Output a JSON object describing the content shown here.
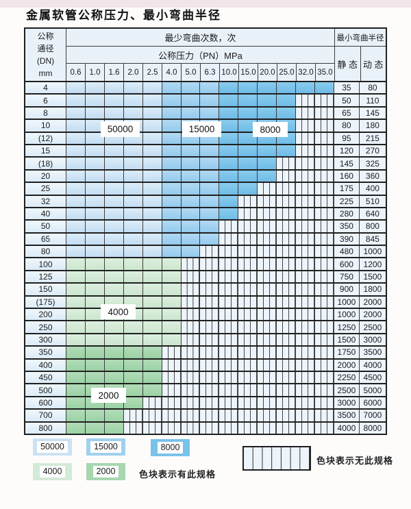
{
  "title": "金属软管公称压力、最小弯曲半径",
  "table": {
    "dn_header_lines": [
      "公称",
      "通径",
      "(DN)",
      "mm"
    ],
    "bend_cycles_header": "最少弯曲次数，次",
    "pressure_header": "公称压力（PN）MPa",
    "radius_header": "最小弯曲半径",
    "static_label": "静 态",
    "dynamic_label": "动 态",
    "pressures": [
      "0.6",
      "1.0",
      "1.6",
      "2.0",
      "2.5",
      "4.0",
      "5.0",
      "6.3",
      "10.0",
      "15.0",
      "20.0",
      "25.0",
      "32.0",
      "35.0"
    ],
    "rows": [
      {
        "dn": "4",
        "avail": 14,
        "shade": "blue",
        "static": "35",
        "dynamic": "80"
      },
      {
        "dn": "6",
        "avail": 12,
        "shade": "blue",
        "static": "50",
        "dynamic": "110"
      },
      {
        "dn": "8",
        "avail": 12,
        "shade": "blue",
        "static": "65",
        "dynamic": "145"
      },
      {
        "dn": "10",
        "avail": 12,
        "shade": "blue",
        "static": "80",
        "dynamic": "180"
      },
      {
        "dn": "(12)",
        "avail": 12,
        "shade": "blue",
        "static": "95",
        "dynamic": "215"
      },
      {
        "dn": "15",
        "avail": 12,
        "shade": "blue",
        "static": "120",
        "dynamic": "270"
      },
      {
        "dn": "(18)",
        "avail": 11,
        "shade": "blue",
        "static": "145",
        "dynamic": "325"
      },
      {
        "dn": "20",
        "avail": 11,
        "shade": "blue",
        "static": "160",
        "dynamic": "360"
      },
      {
        "dn": "25",
        "avail": 10,
        "shade": "blue",
        "static": "175",
        "dynamic": "400"
      },
      {
        "dn": "32",
        "avail": 9,
        "shade": "blue",
        "static": "225",
        "dynamic": "510"
      },
      {
        "dn": "40",
        "avail": 9,
        "shade": "blue",
        "static": "280",
        "dynamic": "640"
      },
      {
        "dn": "50",
        "avail": 8,
        "shade": "blue",
        "static": "350",
        "dynamic": "800"
      },
      {
        "dn": "65",
        "avail": 8,
        "shade": "blue",
        "static": "390",
        "dynamic": "845"
      },
      {
        "dn": "80",
        "avail": 7,
        "shade": "blue",
        "static": "480",
        "dynamic": "1000"
      },
      {
        "dn": "100",
        "avail": 6,
        "shade": "green-light",
        "static": "600",
        "dynamic": "1200"
      },
      {
        "dn": "125",
        "avail": 6,
        "shade": "green-light",
        "static": "750",
        "dynamic": "1500"
      },
      {
        "dn": "150",
        "avail": 6,
        "shade": "green-light",
        "static": "900",
        "dynamic": "1800"
      },
      {
        "dn": "(175)",
        "avail": 6,
        "shade": "green-light",
        "static": "1000",
        "dynamic": "2000"
      },
      {
        "dn": "200",
        "avail": 6,
        "shade": "green-light",
        "static": "1000",
        "dynamic": "2000"
      },
      {
        "dn": "250",
        "avail": 6,
        "shade": "green-light",
        "static": "1250",
        "dynamic": "2500"
      },
      {
        "dn": "300",
        "avail": 6,
        "shade": "green-light",
        "static": "1500",
        "dynamic": "3000"
      },
      {
        "dn": "350",
        "avail": 5,
        "shade": "green-dark",
        "static": "1750",
        "dynamic": "3500"
      },
      {
        "dn": "400",
        "avail": 5,
        "shade": "green-dark",
        "static": "2000",
        "dynamic": "4000"
      },
      {
        "dn": "450",
        "avail": 5,
        "shade": "green-dark",
        "static": "2250",
        "dynamic": "4500"
      },
      {
        "dn": "500",
        "avail": 5,
        "shade": "green-dark",
        "static": "2500",
        "dynamic": "5000"
      },
      {
        "dn": "600",
        "avail": 4,
        "shade": "green-dark",
        "static": "3000",
        "dynamic": "6000"
      },
      {
        "dn": "700",
        "avail": 3,
        "shade": "green-dark",
        "static": "3500",
        "dynamic": "7000"
      },
      {
        "dn": "800",
        "avail": 3,
        "shade": "green-dark",
        "static": "4000",
        "dynamic": "8000"
      }
    ]
  },
  "overlays": {
    "b50000": "50000",
    "b15000": "15000",
    "b8000": "8000",
    "g4000": "4000",
    "g2000": "2000"
  },
  "legend": {
    "swatches": [
      {
        "label": "50000",
        "color": "#cbe2f4"
      },
      {
        "label": "15000",
        "color": "#a0d0ef"
      },
      {
        "label": "8000",
        "color": "#79c2ea"
      },
      {
        "label": "4000",
        "color": "#d3ead6"
      },
      {
        "label": "2000",
        "color": "#a6d7ae"
      }
    ],
    "present_note": "色块表示有此规格",
    "absent_note": "色块表示无此规格"
  },
  "colors": {
    "band_50000": "#cbe2f4",
    "band_15000": "#a0d0ef",
    "band_8000": "#79c2ea",
    "band_4000": "#d3ead6",
    "band_2000": "#a6d7ae",
    "no_spec_bg": "#edf4fb",
    "grid_line": "#1f1f1f"
  }
}
